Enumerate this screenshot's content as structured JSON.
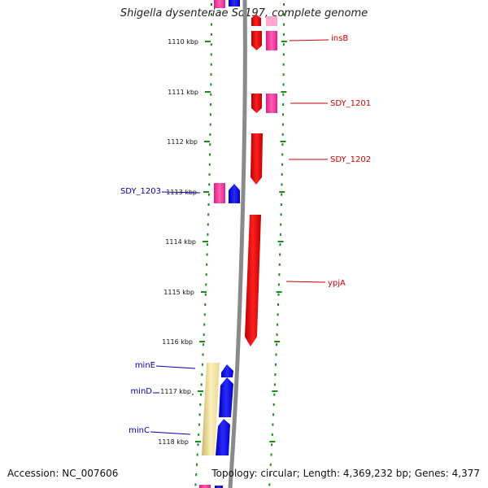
{
  "title": "Shigella dysenteriae Sd197, complete genome",
  "footer": {
    "accession": "Accession: NC_007606",
    "summary": "Topology: circular; Length: 4,369,232 bp; Genes: 4,377"
  },
  "colors": {
    "forward_gene": "#ff0000",
    "reverse_gene": "#0000ff",
    "pink_feature": "#ff3fa0",
    "yellow_feature": "#f3e6a0",
    "backbone": "#888888",
    "tick": "#1a8a1a",
    "forward_label": "#cc0000",
    "reverse_label": "#0000aa"
  },
  "ticks": [
    {
      "label": "1110 kbp"
    },
    {
      "label": "1111 kbp"
    },
    {
      "label": "1112 kbp"
    },
    {
      "label": "1113 kbp"
    },
    {
      "label": "1114 kbp"
    },
    {
      "label": "1115 kbp"
    },
    {
      "label": "1116 kbp"
    },
    {
      "label": "1117 kbp"
    },
    {
      "label": "1118 kbp"
    }
  ],
  "gene_labels": {
    "insB": "insB",
    "sdy1201": "SDY_1201",
    "sdy1202": "SDY_1202",
    "sdy1203": "SDY_1203",
    "ypjA": "ypjA",
    "minE": "minE",
    "minD": "minD",
    "minC": "minC"
  }
}
